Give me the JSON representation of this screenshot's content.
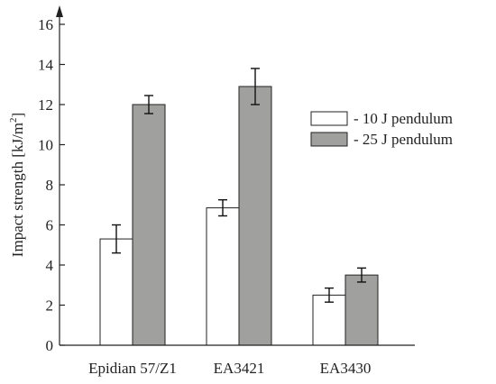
{
  "chart_data": {
    "type": "bar",
    "title": "",
    "xlabel": "",
    "ylabel_main": "Impact strength [kJ/m",
    "ylabel_sup": "2",
    "ylabel_close": "]",
    "ylim": [
      0,
      16
    ],
    "yticks": [
      "0",
      "2",
      "4",
      "6",
      "8",
      "10",
      "12",
      "14",
      "16"
    ],
    "ytick_values": [
      0,
      2,
      4,
      6,
      8,
      10,
      12,
      14,
      16
    ],
    "categories": [
      "Epidian 57/Z1",
      "EA3421",
      "EA3430"
    ],
    "series": [
      {
        "name": "- 10 J pendulum",
        "color": "#ffffff",
        "values": [
          5.3,
          6.85,
          2.5
        ],
        "error": [
          0.7,
          0.4,
          0.35
        ]
      },
      {
        "name": "- 25 J pendulum",
        "color": "#a0a09e",
        "values": [
          12.0,
          12.9,
          3.5
        ],
        "error": [
          0.45,
          0.9,
          0.35
        ]
      }
    ],
    "legend_position": "right",
    "grid": false
  }
}
